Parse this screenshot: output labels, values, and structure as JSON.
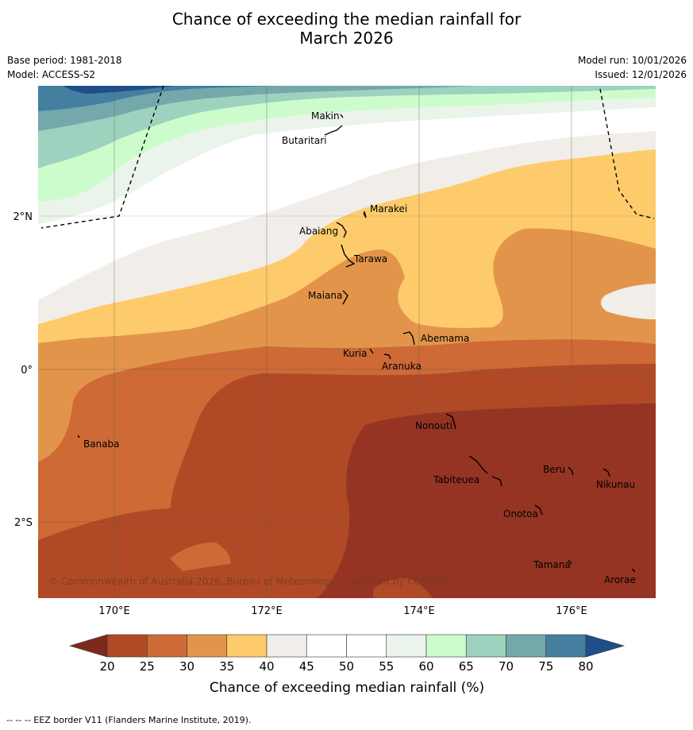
{
  "title": {
    "line1": "Chance of exceeding the median rainfall for",
    "line2": "March 2026"
  },
  "meta": {
    "base_period": "Base period: 1981-2018",
    "model": "Model: ACCESS-S2",
    "model_run": "Model run: 10/01/2026",
    "issued": "Issued: 12/01/2026"
  },
  "map": {
    "lon_ticks": [
      "170°E",
      "172°E",
      "174°E",
      "176°E"
    ],
    "lat_ticks": [
      "2°N",
      "0°",
      "2°S"
    ],
    "copyright": "© Commonwealth of Australia 2026, Bureau of Meteorology, supported by COSPPac",
    "islands": [
      {
        "name": "Makin"
      },
      {
        "name": "Butaritari"
      },
      {
        "name": "Marakei"
      },
      {
        "name": "Abaiang"
      },
      {
        "name": "Tarawa"
      },
      {
        "name": "Maiana"
      },
      {
        "name": "Abemama"
      },
      {
        "name": "Kuria"
      },
      {
        "name": "Aranuka"
      },
      {
        "name": "Banaba"
      },
      {
        "name": "Nonouti"
      },
      {
        "name": "Tabiteuea"
      },
      {
        "name": "Beru"
      },
      {
        "name": "Nikunau"
      },
      {
        "name": "Onotoa"
      },
      {
        "name": "Tamana"
      },
      {
        "name": "Arorae"
      }
    ]
  },
  "colorbar": {
    "ticks": [
      "20",
      "25",
      "30",
      "35",
      "40",
      "45",
      "50",
      "55",
      "60",
      "65",
      "70",
      "75",
      "80"
    ],
    "label": "Chance of exceeding median rainfall (%)",
    "colors": [
      "#953423",
      "#b04a26",
      "#cd6a36",
      "#e2954a",
      "#fdcb6b",
      "#f1ede8",
      "#ffffff",
      "#ffffff",
      "#eaf4ea",
      "#ccfccc",
      "#9dd2be",
      "#75a8aa",
      "#457fa0",
      "#1e4f88"
    ]
  },
  "footnote": "--  --  -- EEZ border V11 (Flanders Marine Institute, 2019)."
}
